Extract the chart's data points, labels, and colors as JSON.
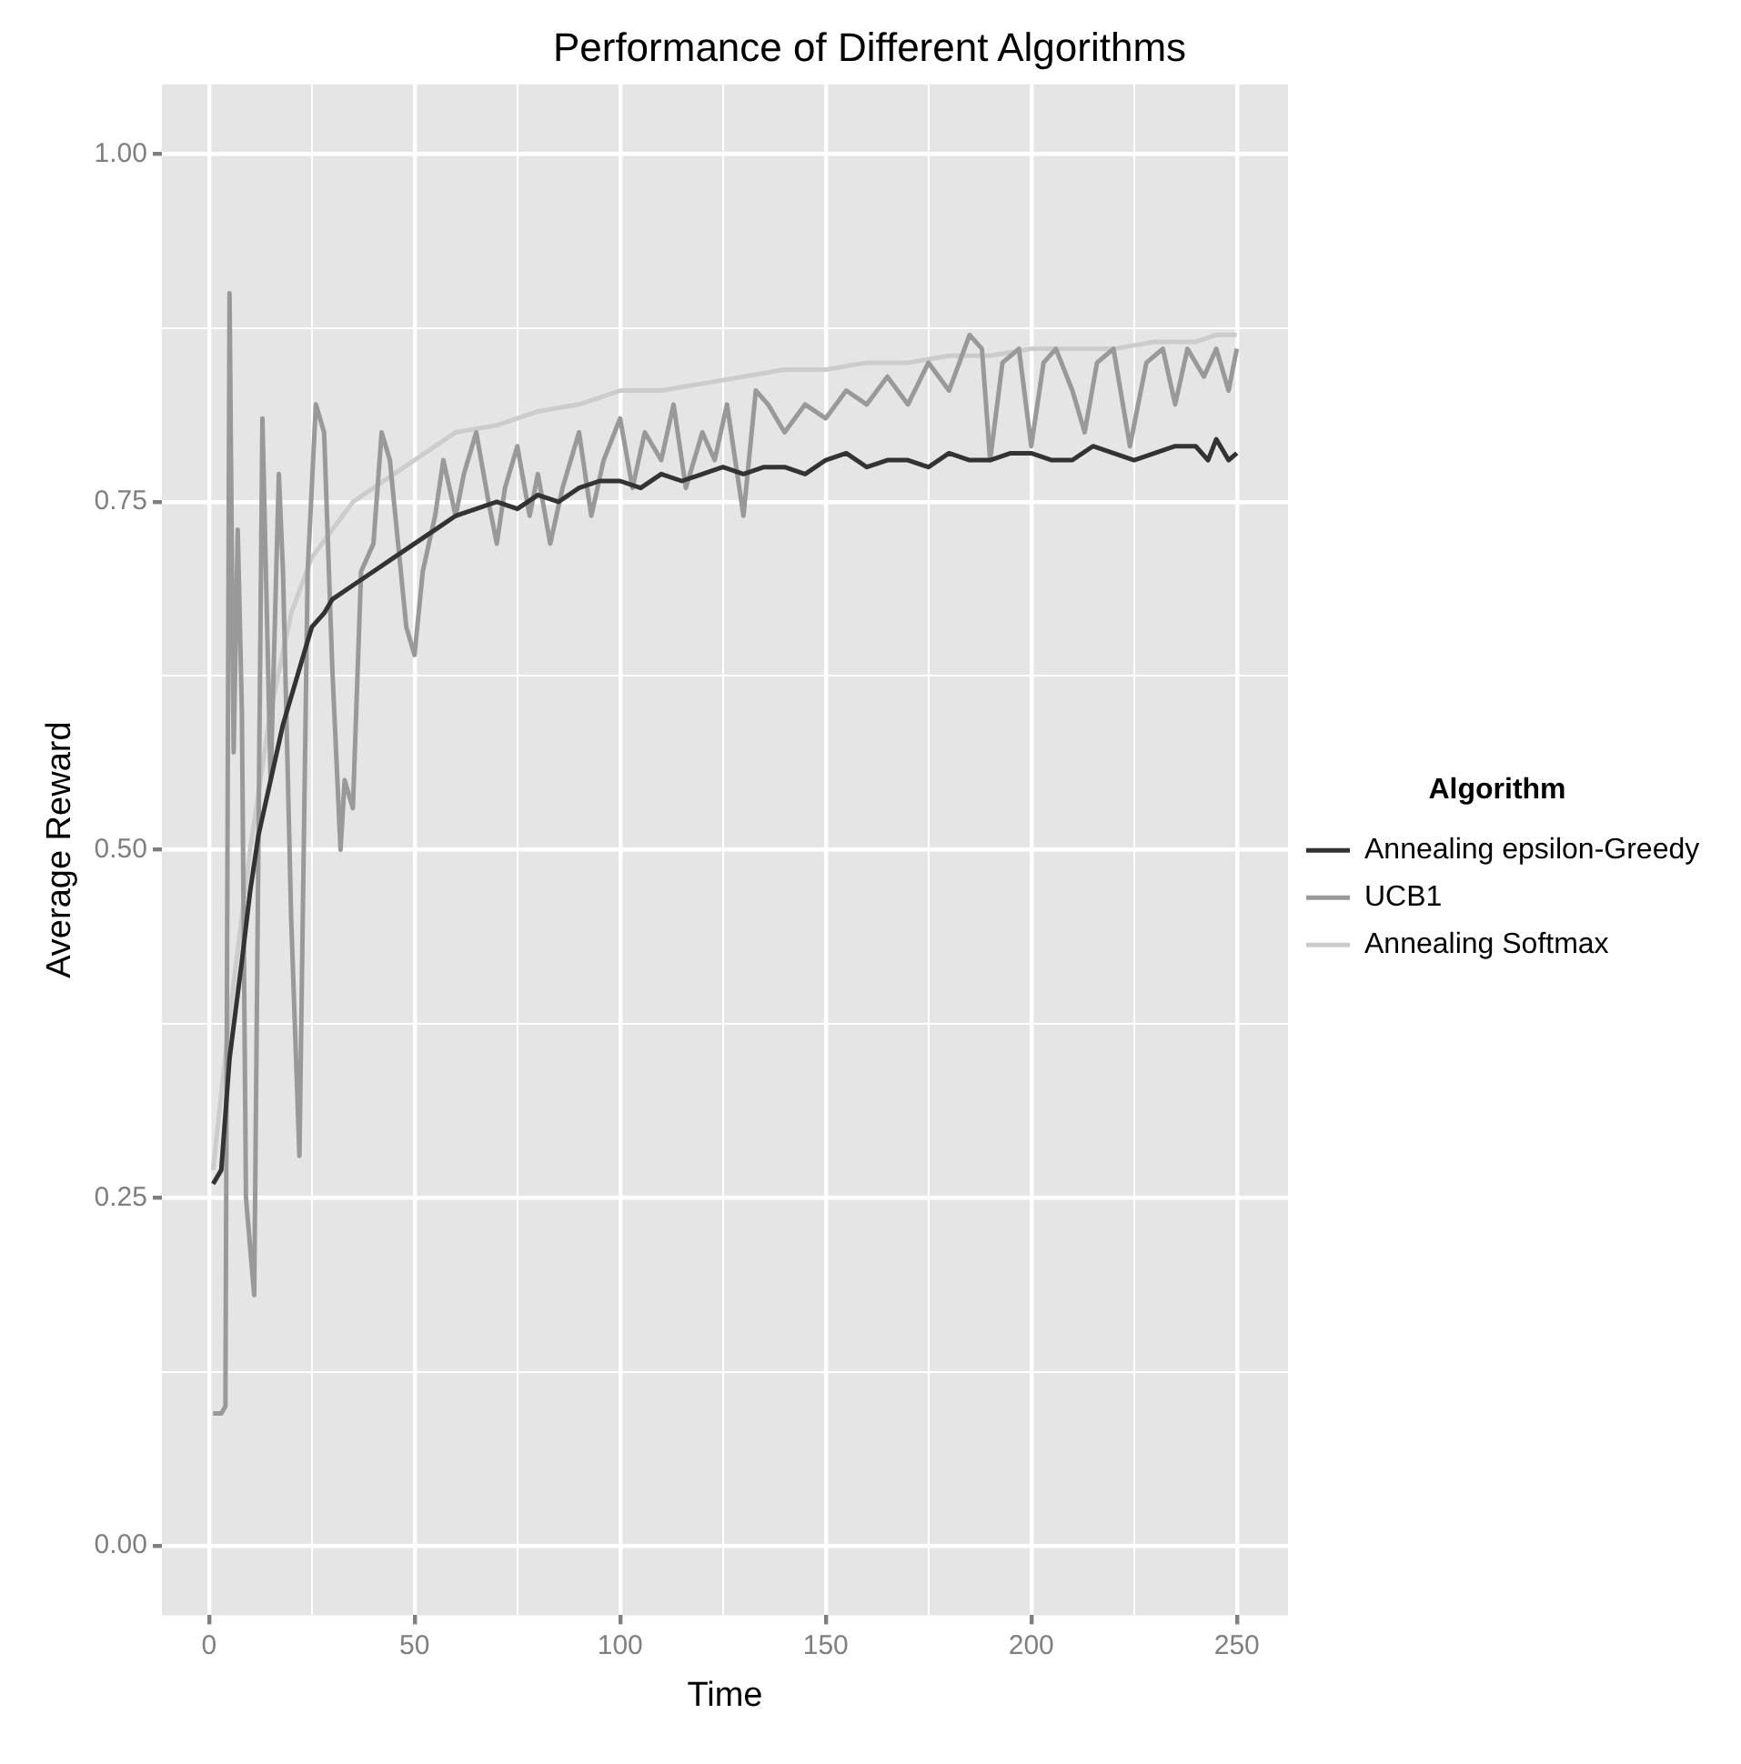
{
  "chart_data": {
    "type": "line",
    "title": "Performance of Different Algorithms",
    "xlabel": "Time",
    "ylabel": "Average Reward",
    "legend_title": "Algorithm",
    "legend": "right",
    "grid": true,
    "marker": "none",
    "line_style": "solid",
    "xlim": [
      -11.45,
      262.45
    ],
    "ylim": [
      -0.05,
      1.05
    ],
    "xticks": [
      0,
      {
        "value": 25,
        "label": null
      },
      50,
      {
        "value": 75,
        "label": null
      },
      100,
      {
        "value": 125,
        "label": null
      },
      150,
      {
        "value": 175,
        "label": null
      },
      200,
      {
        "value": 225,
        "label": null
      },
      250
    ],
    "yticks": [
      {
        "value": 0,
        "label": "0.00"
      },
      {
        "value": 0.125,
        "label": null
      },
      {
        "value": 0.25,
        "label": "0.25"
      },
      {
        "value": 0.375,
        "label": null
      },
      {
        "value": 0.5,
        "label": "0.50"
      },
      {
        "value": 0.625,
        "label": null
      },
      {
        "value": 0.75,
        "label": "0.75"
      },
      {
        "value": 0.875,
        "label": null
      },
      {
        "value": 1,
        "label": "1.00"
      }
    ],
    "series": [
      {
        "name": "Annealing epsilon-Greedy",
        "color": "#333333",
        "x": [
          1,
          3,
          5,
          8,
          10,
          12,
          15,
          18,
          20,
          23,
          25,
          28,
          30,
          35,
          40,
          45,
          50,
          55,
          60,
          65,
          70,
          75,
          80,
          85,
          90,
          95,
          100,
          105,
          110,
          115,
          120,
          125,
          130,
          135,
          140,
          145,
          150,
          155,
          160,
          165,
          170,
          175,
          180,
          185,
          190,
          195,
          200,
          205,
          210,
          215,
          220,
          225,
          230,
          235,
          240,
          243,
          245,
          248,
          250
        ],
        "values": [
          0.26,
          0.27,
          0.35,
          0.42,
          0.47,
          0.51,
          0.55,
          0.59,
          0.61,
          0.64,
          0.66,
          0.67,
          0.68,
          0.69,
          0.7,
          0.71,
          0.72,
          0.73,
          0.74,
          0.745,
          0.75,
          0.745,
          0.755,
          0.75,
          0.76,
          0.765,
          0.765,
          0.76,
          0.77,
          0.765,
          0.77,
          0.775,
          0.77,
          0.775,
          0.775,
          0.77,
          0.78,
          0.785,
          0.775,
          0.78,
          0.78,
          0.775,
          0.785,
          0.78,
          0.78,
          0.785,
          0.785,
          0.78,
          0.78,
          0.79,
          0.785,
          0.78,
          0.785,
          0.79,
          0.79,
          0.78,
          0.795,
          0.78,
          0.785
        ]
      },
      {
        "name": "UCB1",
        "color": "#999999",
        "x": [
          1,
          3,
          4,
          5,
          6,
          7,
          8,
          9,
          11,
          13,
          15,
          17,
          18,
          20,
          22,
          24,
          26,
          28,
          30,
          32,
          33,
          35,
          37,
          40,
          42,
          44,
          46,
          48,
          50,
          52,
          55,
          57,
          60,
          62,
          65,
          68,
          70,
          72,
          75,
          78,
          80,
          83,
          86,
          90,
          93,
          96,
          100,
          103,
          106,
          110,
          113,
          116,
          120,
          123,
          126,
          130,
          133,
          136,
          140,
          145,
          150,
          155,
          160,
          165,
          170,
          175,
          180,
          185,
          188,
          190,
          193,
          197,
          200,
          203,
          206,
          210,
          213,
          216,
          220,
          224,
          228,
          232,
          235,
          238,
          242,
          245,
          248,
          250
        ],
        "values": [
          0.095,
          0.095,
          0.1,
          0.9,
          0.57,
          0.73,
          0.6,
          0.25,
          0.18,
          0.81,
          0.55,
          0.77,
          0.7,
          0.45,
          0.28,
          0.7,
          0.82,
          0.8,
          0.63,
          0.5,
          0.55,
          0.53,
          0.7,
          0.72,
          0.8,
          0.78,
          0.72,
          0.66,
          0.64,
          0.7,
          0.74,
          0.78,
          0.74,
          0.77,
          0.8,
          0.75,
          0.72,
          0.76,
          0.79,
          0.74,
          0.77,
          0.72,
          0.76,
          0.8,
          0.74,
          0.78,
          0.81,
          0.76,
          0.8,
          0.78,
          0.82,
          0.76,
          0.8,
          0.78,
          0.82,
          0.74,
          0.83,
          0.82,
          0.8,
          0.82,
          0.81,
          0.83,
          0.82,
          0.84,
          0.82,
          0.85,
          0.83,
          0.87,
          0.86,
          0.78,
          0.85,
          0.86,
          0.79,
          0.85,
          0.86,
          0.83,
          0.8,
          0.85,
          0.86,
          0.79,
          0.85,
          0.86,
          0.82,
          0.86,
          0.84,
          0.86,
          0.83,
          0.86
        ]
      },
      {
        "name": "Annealing Softmax",
        "color": "#cccccc",
        "x": [
          1,
          5,
          10,
          15,
          20,
          25,
          30,
          35,
          40,
          45,
          50,
          55,
          60,
          70,
          80,
          90,
          100,
          110,
          120,
          130,
          140,
          150,
          160,
          170,
          180,
          190,
          200,
          210,
          220,
          230,
          240,
          245,
          250
        ],
        "values": [
          0.27,
          0.38,
          0.5,
          0.6,
          0.67,
          0.71,
          0.73,
          0.75,
          0.76,
          0.77,
          0.78,
          0.79,
          0.8,
          0.805,
          0.815,
          0.82,
          0.83,
          0.83,
          0.835,
          0.84,
          0.845,
          0.845,
          0.85,
          0.85,
          0.855,
          0.855,
          0.86,
          0.86,
          0.86,
          0.865,
          0.865,
          0.87,
          0.87
        ]
      }
    ]
  }
}
